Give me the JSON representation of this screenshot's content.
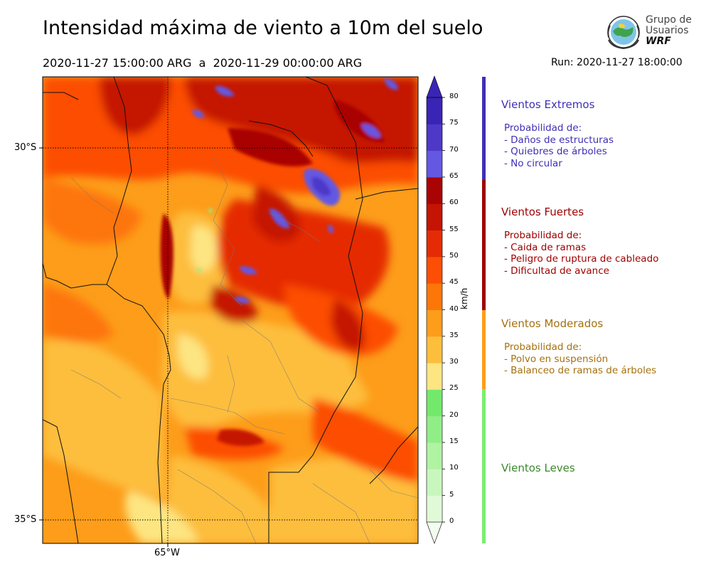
{
  "title": "Intensidad máxima de viento a 10m del suelo",
  "period": "2020-11-27 15:00:00 ARG  a  2020-11-29 00:00:00 ARG",
  "run": "Run: 2020-11-27 18:00:00",
  "logo": {
    "line1": "Grupo de",
    "line2": "Usuarios",
    "line3": "WRF",
    "icon": "globe-seal-icon"
  },
  "map": {
    "lat_labels": [
      "30°S",
      "35°S"
    ],
    "lon_labels": [
      "65°W"
    ]
  },
  "colorbar": {
    "unit": "km/h",
    "ticks": [
      "0",
      "5",
      "10",
      "15",
      "20",
      "25",
      "30",
      "35",
      "40",
      "45",
      "50",
      "55",
      "60",
      "65",
      "70",
      "75",
      "80"
    ],
    "colors": [
      "#f2fdf0",
      "#e0fad8",
      "#c8f7bd",
      "#b0f3a3",
      "#91ee86",
      "#73e96b",
      "#fde582",
      "#fdbe3c",
      "#fd9d1a",
      "#fd7608",
      "#fc4e05",
      "#e52b05",
      "#c51403",
      "#a90303",
      "#6458e3",
      "#4e38c8",
      "#3a24b6"
    ]
  },
  "categories": [
    {
      "name": "Vientos Extremos",
      "color": "#3f2fb5",
      "lines": [
        "Probabilidad de:",
        "- Daños de estructuras",
        "- Quiebres de árboles",
        "- No circular"
      ]
    },
    {
      "name": "Vientos Fuertes",
      "color": "#a00000",
      "lines": [
        "Probabilidad de:",
        "- Caida de ramas",
        "- Peligro de ruptura de cableado",
        "- Dificultad de avance"
      ]
    },
    {
      "name": "Vientos Moderados",
      "color": "#a6700e",
      "bar_color": "#fd9d1a",
      "lines": [
        "Probabilidad de:",
        "- Polvo en suspensión",
        "- Balanceo de ramas de árboles"
      ]
    },
    {
      "name": "Vientos Leves",
      "color": "#3b8a2b",
      "bar_color": "#79ee6f",
      "lines": []
    }
  ]
}
